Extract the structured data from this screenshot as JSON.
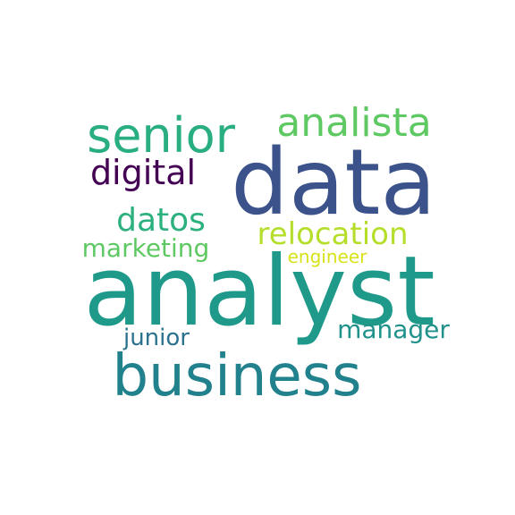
{
  "words": [
    {
      "key": "analyst",
      "text": "analyst",
      "color": "#1f9a8a",
      "weight": 1.0
    },
    {
      "key": "data",
      "text": "data",
      "color": "#3b528b",
      "weight": 0.94
    },
    {
      "key": "business",
      "text": "business",
      "color": "#21818c",
      "weight": 0.59
    },
    {
      "key": "senior",
      "text": "senior",
      "color": "#28ae80",
      "weight": 0.5
    },
    {
      "key": "analista",
      "text": "analista",
      "color": "#5ec962",
      "weight": 0.41
    },
    {
      "key": "relocation",
      "text": "relocation",
      "color": "#b5de2b",
      "weight": 0.31
    },
    {
      "key": "digital",
      "text": "digital",
      "color": "#440154",
      "weight": 0.35
    },
    {
      "key": "datos",
      "text": "datos",
      "color": "#2cb17e",
      "weight": 0.33
    },
    {
      "key": "marketing",
      "text": "marketing",
      "color": "#5ec962",
      "weight": 0.26
    },
    {
      "key": "manager",
      "text": "manager",
      "color": "#21918c",
      "weight": 0.26
    },
    {
      "key": "junior",
      "text": "junior",
      "color": "#2c728e",
      "weight": 0.24
    },
    {
      "key": "engineer",
      "text": "engineer",
      "color": "#d8e219",
      "weight": 0.18
    }
  ]
}
